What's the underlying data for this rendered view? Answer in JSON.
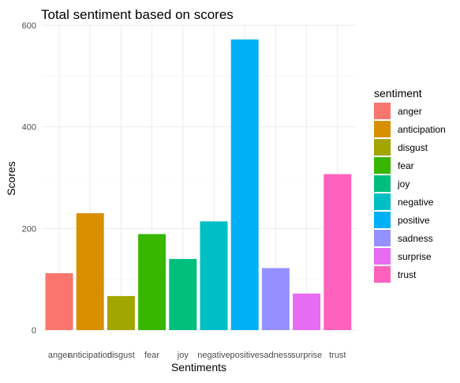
{
  "chart_data": {
    "type": "bar",
    "title": "Total sentiment based on scores",
    "xlabel": "Sentiments",
    "ylabel": "Scores",
    "categories": [
      "anger",
      "anticipation",
      "disgust",
      "fear",
      "joy",
      "negative",
      "positive",
      "sadness",
      "surprise",
      "trust"
    ],
    "values": [
      112,
      230,
      67,
      189,
      140,
      214,
      572,
      122,
      72,
      307
    ],
    "colors": [
      "#F8766D",
      "#D89000",
      "#A3A500",
      "#39B600",
      "#00BF7D",
      "#00BFC4",
      "#00B0F6",
      "#9590FF",
      "#E76BF3",
      "#FF62BC"
    ],
    "ylim": [
      0,
      600
    ],
    "yticks": [
      0,
      200,
      400,
      600
    ],
    "grid": true,
    "legend": {
      "title": "sentiment",
      "placement": "right"
    }
  }
}
